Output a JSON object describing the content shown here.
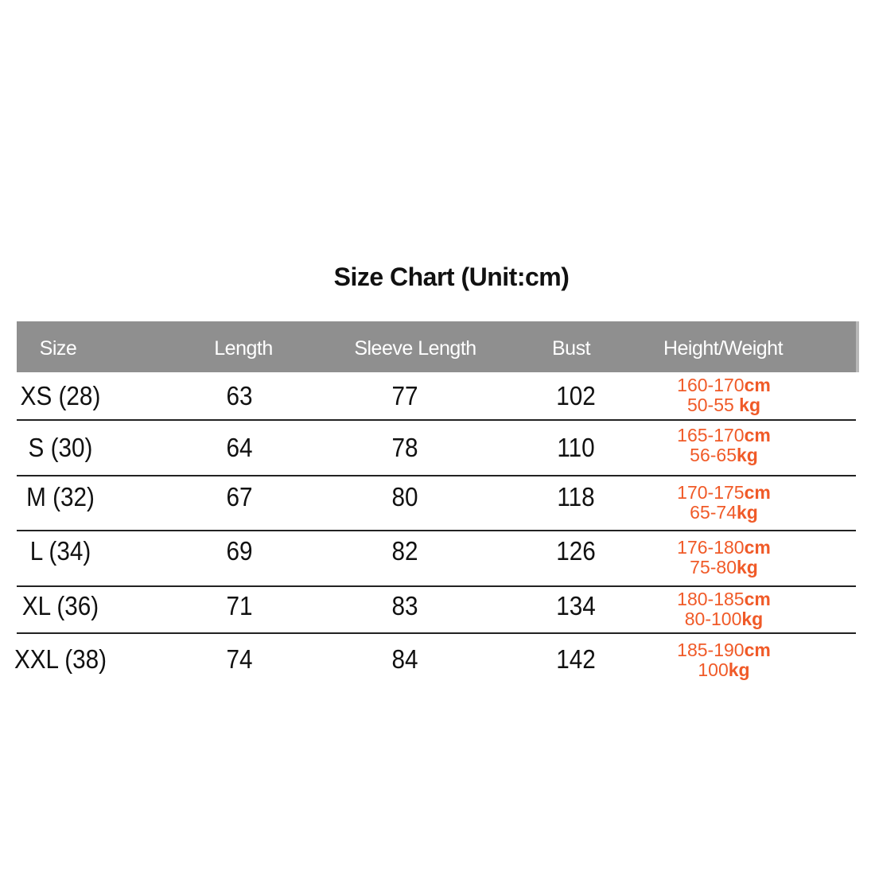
{
  "title": "Size Chart (Unit:cm)",
  "headers": [
    "Size",
    "Length",
    "Sleeve Length",
    "Bust",
    "Height/Weight"
  ],
  "accent_color": "#f05a28",
  "header_color": "#8f8f8f",
  "rows": [
    {
      "size": "XS (28)",
      "length": "63",
      "sleeve": "77",
      "bust": "102",
      "height": "160-170",
      "height_unit": "cm",
      "weight": "50-55 ",
      "weight_unit": "kg"
    },
    {
      "size": "S (30)",
      "length": "64",
      "sleeve": "78",
      "bust": "110",
      "height": "165-170",
      "height_unit": "cm",
      "weight": "56-65",
      "weight_unit": "kg"
    },
    {
      "size": "M (32)",
      "length": "67",
      "sleeve": "80",
      "bust": "118",
      "height": "170-175",
      "height_unit": "cm",
      "weight": "65-74",
      "weight_unit": "kg"
    },
    {
      "size": "L (34)",
      "length": "69",
      "sleeve": "82",
      "bust": "126",
      "height": "176-180",
      "height_unit": "cm",
      "weight": "75-80",
      "weight_unit": "kg"
    },
    {
      "size": "XL (36)",
      "length": "71",
      "sleeve": "83",
      "bust": "134",
      "height": "180-185",
      "height_unit": "cm",
      "weight": "80-100",
      "weight_unit": "kg"
    },
    {
      "size": "XXL (38)",
      "length": "74",
      "sleeve": "84",
      "bust": "142",
      "height": "185-190",
      "height_unit": "cm",
      "weight": "100",
      "weight_unit": "kg"
    }
  ]
}
